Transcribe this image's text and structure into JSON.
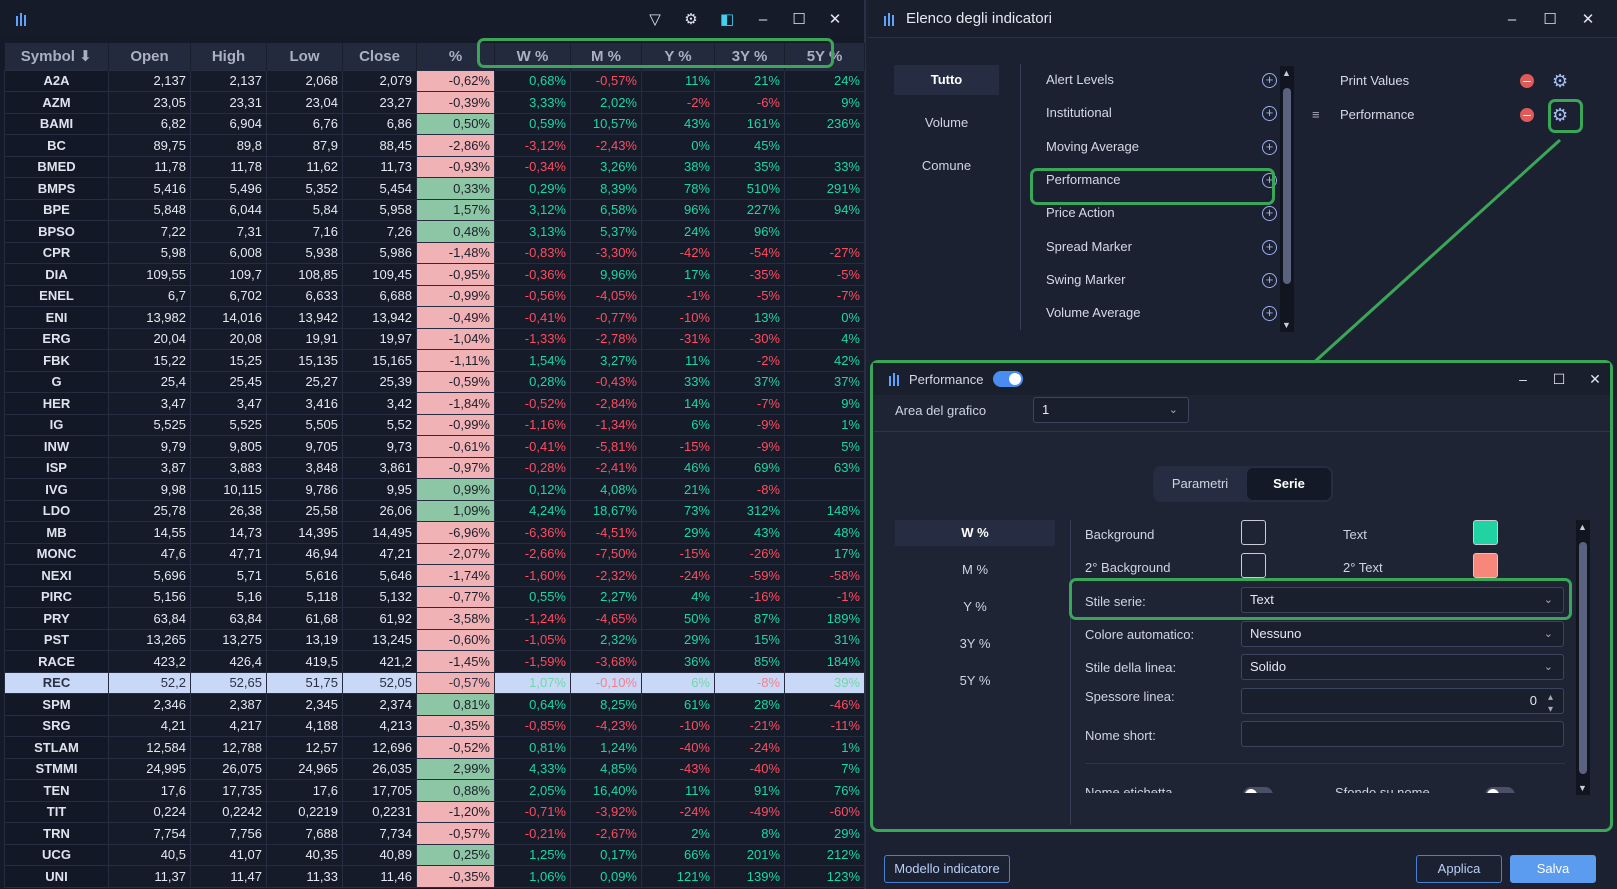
{
  "left_window": {
    "window_controls": [
      "▽",
      "⚙",
      "◧",
      "–",
      "☐",
      "✕"
    ],
    "columns": [
      "Symbol ⬇",
      "Open",
      "High",
      "Low",
      "Close",
      "%",
      "W %",
      "M %",
      "Y %",
      "3Y %",
      "5Y %"
    ],
    "rows": [
      [
        "A2A",
        "2,137",
        "2,137",
        "2,068",
        "2,079",
        "-0,62%",
        "0,68%",
        "-0,57%",
        "11%",
        "21%",
        "24%"
      ],
      [
        "AZM",
        "23,05",
        "23,31",
        "23,04",
        "23,27",
        "-0,39%",
        "3,33%",
        "2,02%",
        "-2%",
        "-6%",
        "9%"
      ],
      [
        "BAMI",
        "6,82",
        "6,904",
        "6,76",
        "6,86",
        "0,50%",
        "0,59%",
        "10,57%",
        "43%",
        "161%",
        "236%"
      ],
      [
        "BC",
        "89,75",
        "89,8",
        "87,9",
        "88,45",
        "-2,86%",
        "-3,12%",
        "-2,43%",
        "0%",
        "45%",
        ""
      ],
      [
        "BMED",
        "11,78",
        "11,78",
        "11,62",
        "11,73",
        "-0,93%",
        "-0,34%",
        "3,26%",
        "38%",
        "35%",
        "33%"
      ],
      [
        "BMPS",
        "5,416",
        "5,496",
        "5,352",
        "5,454",
        "0,33%",
        "0,29%",
        "8,39%",
        "78%",
        "510%",
        "291%"
      ],
      [
        "BPE",
        "5,848",
        "6,044",
        "5,84",
        "5,958",
        "1,57%",
        "3,12%",
        "6,58%",
        "96%",
        "227%",
        "94%"
      ],
      [
        "BPSO",
        "7,22",
        "7,31",
        "7,16",
        "7,26",
        "0,48%",
        "3,13%",
        "5,37%",
        "24%",
        "96%",
        ""
      ],
      [
        "CPR",
        "5,98",
        "6,008",
        "5,938",
        "5,986",
        "-1,48%",
        "-0,83%",
        "-3,30%",
        "-42%",
        "-54%",
        "-27%"
      ],
      [
        "DIA",
        "109,55",
        "109,7",
        "108,85",
        "109,45",
        "-0,95%",
        "-0,36%",
        "9,96%",
        "17%",
        "-35%",
        "-5%"
      ],
      [
        "ENEL",
        "6,7",
        "6,702",
        "6,633",
        "6,688",
        "-0,99%",
        "-0,56%",
        "-4,05%",
        "-1%",
        "-5%",
        "-7%"
      ],
      [
        "ENI",
        "13,982",
        "14,016",
        "13,942",
        "13,942",
        "-0,49%",
        "-0,41%",
        "-0,77%",
        "-10%",
        "13%",
        "0%"
      ],
      [
        "ERG",
        "20,04",
        "20,08",
        "19,91",
        "19,97",
        "-1,04%",
        "-1,33%",
        "-2,78%",
        "-31%",
        "-30%",
        "4%"
      ],
      [
        "FBK",
        "15,22",
        "15,25",
        "15,135",
        "15,165",
        "-1,11%",
        "1,54%",
        "3,27%",
        "11%",
        "-2%",
        "42%"
      ],
      [
        "G",
        "25,4",
        "25,45",
        "25,27",
        "25,39",
        "-0,59%",
        "0,28%",
        "-0,43%",
        "33%",
        "37%",
        "37%"
      ],
      [
        "HER",
        "3,47",
        "3,47",
        "3,416",
        "3,42",
        "-1,84%",
        "-0,52%",
        "-2,84%",
        "14%",
        "-7%",
        "9%"
      ],
      [
        "IG",
        "5,525",
        "5,525",
        "5,505",
        "5,52",
        "-0,99%",
        "-1,16%",
        "-1,34%",
        "6%",
        "-9%",
        "1%"
      ],
      [
        "INW",
        "9,79",
        "9,805",
        "9,705",
        "9,73",
        "-0,61%",
        "-0,41%",
        "-5,81%",
        "-15%",
        "-9%",
        "5%"
      ],
      [
        "ISP",
        "3,87",
        "3,883",
        "3,848",
        "3,861",
        "-0,97%",
        "-0,28%",
        "-2,41%",
        "46%",
        "69%",
        "63%"
      ],
      [
        "IVG",
        "9,98",
        "10,115",
        "9,786",
        "9,95",
        "0,99%",
        "0,12%",
        "4,08%",
        "21%",
        "-8%",
        ""
      ],
      [
        "LDO",
        "25,78",
        "26,38",
        "25,58",
        "26,06",
        "1,09%",
        "4,24%",
        "18,67%",
        "73%",
        "312%",
        "148%"
      ],
      [
        "MB",
        "14,55",
        "14,73",
        "14,395",
        "14,495",
        "-6,96%",
        "-6,36%",
        "-4,51%",
        "29%",
        "43%",
        "48%"
      ],
      [
        "MONC",
        "47,6",
        "47,71",
        "46,94",
        "47,21",
        "-2,07%",
        "-2,66%",
        "-7,50%",
        "-15%",
        "-26%",
        "17%"
      ],
      [
        "NEXI",
        "5,696",
        "5,71",
        "5,616",
        "5,646",
        "-1,74%",
        "-1,60%",
        "-2,32%",
        "-24%",
        "-59%",
        "-58%"
      ],
      [
        "PIRC",
        "5,156",
        "5,16",
        "5,118",
        "5,132",
        "-0,77%",
        "0,55%",
        "2,27%",
        "4%",
        "-16%",
        "-1%"
      ],
      [
        "PRY",
        "63,84",
        "63,84",
        "61,68",
        "61,92",
        "-3,58%",
        "-1,24%",
        "-4,65%",
        "50%",
        "87%",
        "189%"
      ],
      [
        "PST",
        "13,265",
        "13,275",
        "13,19",
        "13,245",
        "-0,60%",
        "-1,05%",
        "2,32%",
        "29%",
        "15%",
        "31%"
      ],
      [
        "RACE",
        "423,2",
        "426,4",
        "419,5",
        "421,2",
        "-1,45%",
        "-1,59%",
        "-3,68%",
        "36%",
        "85%",
        "184%"
      ],
      [
        "REC",
        "52,2",
        "52,65",
        "51,75",
        "52,05",
        "-0,57%",
        "1,07%",
        "-0,10%",
        "6%",
        "-8%",
        "39%"
      ],
      [
        "SPM",
        "2,346",
        "2,387",
        "2,345",
        "2,374",
        "0,81%",
        "0,64%",
        "8,25%",
        "61%",
        "28%",
        "-46%"
      ],
      [
        "SRG",
        "4,21",
        "4,217",
        "4,188",
        "4,213",
        "-0,35%",
        "-0,85%",
        "-4,23%",
        "-10%",
        "-21%",
        "-11%"
      ],
      [
        "STLAM",
        "12,584",
        "12,788",
        "12,57",
        "12,696",
        "-0,52%",
        "0,81%",
        "1,24%",
        "-40%",
        "-24%",
        "1%"
      ],
      [
        "STMMI",
        "24,995",
        "26,075",
        "24,965",
        "26,035",
        "2,99%",
        "4,33%",
        "4,85%",
        "-43%",
        "-40%",
        "7%"
      ],
      [
        "TEN",
        "17,6",
        "17,735",
        "17,6",
        "17,705",
        "0,88%",
        "2,05%",
        "16,40%",
        "11%",
        "91%",
        "76%"
      ],
      [
        "TIT",
        "0,224",
        "0,2242",
        "0,2219",
        "0,2231",
        "-1,20%",
        "-0,71%",
        "-3,92%",
        "-24%",
        "-49%",
        "-60%"
      ],
      [
        "TRN",
        "7,754",
        "7,756",
        "7,688",
        "7,734",
        "-0,57%",
        "-0,21%",
        "-2,67%",
        "2%",
        "8%",
        "29%"
      ],
      [
        "UCG",
        "40,5",
        "41,07",
        "40,35",
        "40,89",
        "0,25%",
        "1,25%",
        "0,17%",
        "66%",
        "201%",
        "212%"
      ],
      [
        "UNI",
        "11,37",
        "11,47",
        "11,33",
        "11,46",
        "-0,35%",
        "1,06%",
        "0,09%",
        "121%",
        "139%",
        "123%"
      ]
    ],
    "selected_symbol": "REC"
  },
  "indicators_window": {
    "title": "Elenco degli indicatori",
    "categories": [
      "Tutto",
      "Volume",
      "Comune"
    ],
    "available": [
      "Alert Levels",
      "Institutional",
      "Moving Average",
      "Performance",
      "Price Action",
      "Spread Marker",
      "Swing Marker",
      "Volume Average"
    ],
    "selected": [
      "Print Values",
      "Performance"
    ]
  },
  "performance_dialog": {
    "title": "Performance",
    "area_label": "Area del grafico",
    "area_value": "1",
    "tabs": [
      "Parametri",
      "Serie"
    ],
    "series": [
      "W %",
      "M %",
      "Y %",
      "3Y %",
      "5Y %"
    ],
    "background_label": "Background",
    "bg2_label": "2° Background",
    "text_label": "Text",
    "text2_label": "2° Text",
    "text_color": "#1fd3a3",
    "text2_color": "#f8877b",
    "stile_serie_label": "Stile serie:",
    "stile_serie_value": "Text",
    "colore_auto_label": "Colore automatico:",
    "colore_auto_value": "Nessuno",
    "stile_linea_label": "Stile della linea:",
    "stile_linea_value": "Solido",
    "spessore_label": "Spessore linea:",
    "spessore_value": "0",
    "nome_short_label": "Nome short:",
    "nome_etichetta_label": "Nome etichetta",
    "sfondo_nome_label": "Sfondo su nome"
  },
  "footer": {
    "modello_label": "Modello indicatore",
    "applica_label": "Applica",
    "salva_label": "Salva"
  },
  "colors": {
    "accent_green": "#3aa657",
    "positive": "#1ad8a6",
    "negative": "#ff4c5f",
    "primary": "#5b9bf0"
  }
}
